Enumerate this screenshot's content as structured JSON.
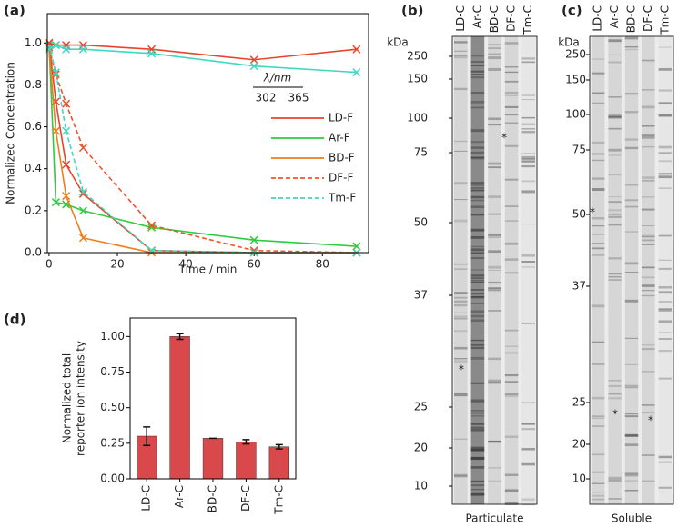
{
  "chart_data": [
    {
      "type": "line",
      "label": "(a)",
      "xlabel": "Time / min",
      "ylabel": "Normalized Concentration",
      "x": [
        0,
        2,
        5,
        10,
        30,
        60,
        90
      ],
      "xlim": [
        -0.5,
        93.5
      ],
      "xticks": [
        0,
        20,
        40,
        60,
        80
      ],
      "ylim": [
        0,
        1.14
      ],
      "yticks": [
        {
          "value": 0,
          "label": "0.0"
        },
        {
          "value": 0.2,
          "label": "0.2"
        },
        {
          "value": 0.4,
          "label": "0.4"
        },
        {
          "value": 0.6,
          "label": "0.6"
        },
        {
          "value": 0.8,
          "label": "0.8"
        },
        {
          "value": 1,
          "label": "1.0"
        }
      ],
      "legend_title": "λ/nm",
      "legend_columns": [
        "302",
        "365"
      ],
      "series": [
        {
          "name": "LD-F",
          "color": "#e8452a",
          "dashed": false,
          "values": [
            1.0,
            0.72,
            0.42,
            0.28,
            0.01,
            0.0,
            0.0
          ]
        },
        {
          "name": "Ar-F",
          "color": "#2ecc40",
          "dashed": false,
          "values": [
            1.0,
            0.24,
            0.23,
            0.2,
            0.12,
            0.06,
            0.03
          ]
        },
        {
          "name": "BD-F",
          "color": "#f07d1a",
          "dashed": false,
          "values": [
            0.97,
            0.58,
            0.27,
            0.07,
            0.0,
            0.0,
            0.0
          ]
        },
        {
          "name": "DF-F",
          "color": "#f0522a",
          "dashed": true,
          "values": [
            0.98,
            0.85,
            0.71,
            0.5,
            0.13,
            0.01,
            0.0
          ]
        },
        {
          "name": "Tm-F",
          "color": "#3dd9c1",
          "dashed": true,
          "values": [
            0.99,
            0.86,
            0.58,
            0.29,
            0.01,
            0.0,
            0.0
          ]
        },
        {
          "color": "#e8452a",
          "dashed": false,
          "values": [
            1.0,
            0.99,
            0.99,
            0.99,
            0.97,
            0.92,
            0.97
          ]
        },
        {
          "color": "#3dd9c1",
          "dashed": false,
          "values": [
            0.97,
            0.99,
            0.97,
            0.97,
            0.95,
            0.89,
            0.86
          ]
        }
      ]
    },
    {
      "type": "gel",
      "label": "(b)",
      "unit": "kDa",
      "lanes": [
        "LD-C",
        "Ar-C",
        "BD-C",
        "DF-C",
        "Tm-C"
      ],
      "yticks": [
        250,
        150,
        100,
        75,
        50,
        37,
        25,
        20,
        10
      ],
      "caption": "Particulate"
    },
    {
      "type": "gel",
      "label": "(c)",
      "unit": "kDa",
      "lanes": [
        "LD-C",
        "Ar-C",
        "BD-C",
        "DF-C",
        "Tm-C"
      ],
      "yticks": [
        250,
        150,
        100,
        75,
        50,
        37,
        25,
        20,
        10
      ],
      "caption": "Soluble"
    },
    {
      "type": "bar",
      "label": "(d)",
      "ylabel": [
        "Normalized total",
        "reporter ion intensity"
      ],
      "categories": [
        "LD-C",
        "Ar-C",
        "BD-C",
        "DF-C",
        "Tm-C"
      ],
      "values": [
        0.3,
        1.0,
        0.285,
        0.26,
        0.225
      ],
      "errors": [
        0.065,
        0.02,
        0,
        0.015,
        0.015
      ],
      "color": "#d9484a",
      "ylim": [
        0,
        1.13
      ],
      "yticks": [
        {
          "value": 0,
          "label": "0.00"
        },
        {
          "value": 0.25,
          "label": "0.25"
        },
        {
          "value": 0.5,
          "label": "0.50"
        },
        {
          "value": 0.75,
          "label": "0.75"
        },
        {
          "value": 1,
          "label": "1.00"
        }
      ]
    }
  ]
}
